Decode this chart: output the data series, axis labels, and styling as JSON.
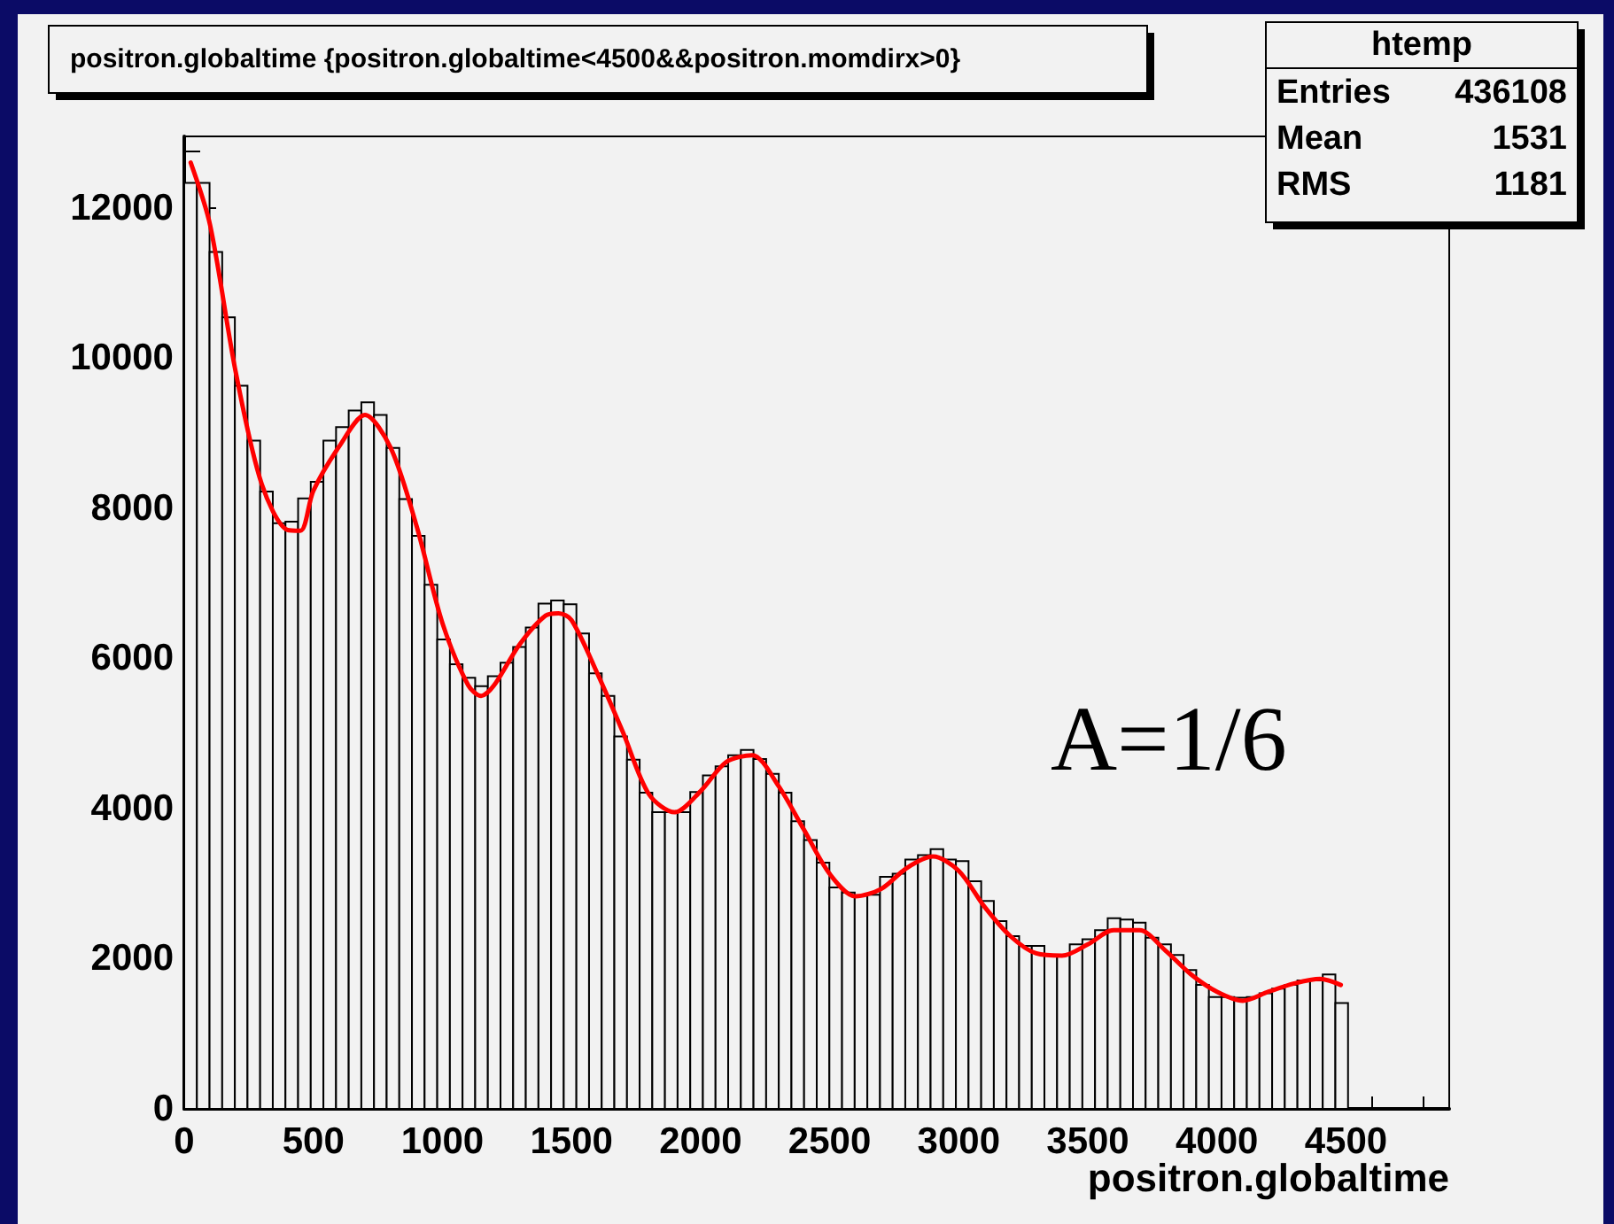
{
  "chart_data": {
    "type": "histogram",
    "title": "positron.globaltime {positron.globaltime<4500&&positron.momdirx>0}",
    "xlabel": "positron.globaltime",
    "annotations": [
      "htemp",
      "Entries 436108",
      "Mean 1531",
      "RMS 1181",
      "A=1/6"
    ],
    "xlim": [
      0,
      4900
    ],
    "xticks": [
      0,
      500,
      1000,
      1500,
      2000,
      2500,
      3000,
      3500,
      4000,
      4500
    ],
    "ylim": [
      0,
      12950
    ],
    "yticks": [
      0,
      2000,
      4000,
      6000,
      8000,
      10000,
      12000
    ],
    "grid": false,
    "series": [
      {
        "color": "#000000",
        "bins": [
          0,
          49,
          98,
          147,
          196,
          245,
          294,
          343,
          392,
          441,
          490,
          539,
          588,
          637,
          686,
          735,
          784,
          833,
          882,
          931,
          980,
          1029,
          1078,
          1127,
          1176,
          1225,
          1274,
          1323,
          1372,
          1421,
          1470,
          1519,
          1568,
          1617,
          1666,
          1715,
          1764,
          1813,
          1862,
          1911,
          1960,
          2009,
          2058,
          2107,
          2156,
          2205,
          2254,
          2303,
          2352,
          2401,
          2450,
          2499,
          2548,
          2597,
          2646,
          2695,
          2744,
          2793,
          2842,
          2891,
          2940,
          2989,
          3038,
          3087,
          3136,
          3185,
          3234,
          3283,
          3332,
          3381,
          3430,
          3479,
          3528,
          3577,
          3626,
          3675,
          3724,
          3773,
          3822,
          3871,
          3920,
          3969,
          4018,
          4067,
          4116,
          4165,
          4214,
          4263,
          4312,
          4361,
          4410,
          4459,
          4508
        ],
        "values": [
          12330,
          12330,
          11410,
          10540,
          9630,
          8900,
          8220,
          7800,
          7820,
          8130,
          8350,
          8900,
          9080,
          9300,
          9410,
          9240,
          8800,
          8120,
          7630,
          6980,
          6250,
          5920,
          5740,
          5630,
          5760,
          5940,
          6150,
          6410,
          6730,
          6770,
          6720,
          6330,
          5800,
          5500,
          4960,
          4650,
          4210,
          3950,
          3950,
          3950,
          4220,
          4440,
          4560,
          4710,
          4780,
          4660,
          4460,
          4210,
          3830,
          3580,
          3280,
          2950,
          2880,
          2840,
          2850,
          3090,
          3130,
          3320,
          3380,
          3460,
          3320,
          3300,
          3030,
          2770,
          2500,
          2300,
          2170,
          2170,
          2040,
          2040,
          2190,
          2260,
          2380,
          2540,
          2520,
          2480,
          2280,
          2190,
          2050,
          1850,
          1650,
          1490,
          1490,
          1480,
          1490,
          1540,
          1600,
          1650,
          1710,
          1710,
          1790,
          1410
        ]
      },
      {
        "type": "line",
        "color": "#ff0000",
        "marker": "none",
        "line_style": "solid",
        "x": [
          25,
          100,
          200,
          300,
          400,
          450,
          500,
          600,
          700,
          800,
          900,
          1000,
          1100,
          1150,
          1200,
          1300,
          1400,
          1450,
          1500,
          1600,
          1700,
          1800,
          1900,
          2000,
          2100,
          2200,
          2300,
          2400,
          2500,
          2600,
          2700,
          2800,
          2900,
          3000,
          3100,
          3200,
          3300,
          3400,
          3500,
          3600,
          3700,
          3800,
          3900,
          4000,
          4100,
          4200,
          4300,
          4400,
          4480
        ],
        "values": [
          12600,
          11770,
          9800,
          8320,
          7710,
          7700,
          8230,
          8820,
          9240,
          8800,
          7760,
          6470,
          5640,
          5500,
          5640,
          6190,
          6570,
          6600,
          6510,
          5800,
          5010,
          4190,
          3950,
          4230,
          4620,
          4710,
          4310,
          3720,
          3130,
          2830,
          2930,
          3210,
          3360,
          3170,
          2690,
          2300,
          2070,
          2040,
          2190,
          2380,
          2380,
          2110,
          1790,
          1560,
          1440,
          1560,
          1670,
          1730,
          1650
        ]
      }
    ]
  }
}
